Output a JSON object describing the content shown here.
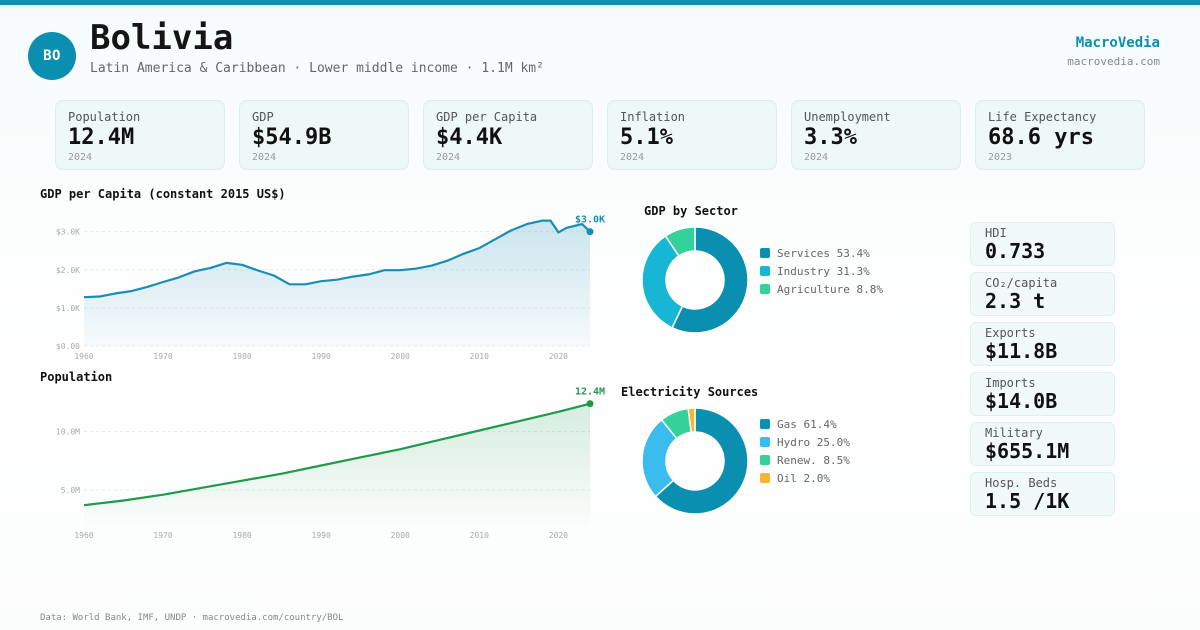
{
  "header": {
    "code": "BO",
    "country": "Bolivia",
    "subtitle": "Latin America & Caribbean · Lower middle income · 1.1M km²",
    "brand": "MacroVedia",
    "brand_url": "macrovedia.com"
  },
  "stats": [
    {
      "label": "Population",
      "value": "12.4M",
      "year": "2024"
    },
    {
      "label": "GDP",
      "value": "$54.9B",
      "year": "2024"
    },
    {
      "label": "GDP per Capita",
      "value": "$4.4K",
      "year": "2024"
    },
    {
      "label": "Inflation",
      "value": "5.1%",
      "year": "2024"
    },
    {
      "label": "Unemployment",
      "value": "3.3%",
      "year": "2024"
    },
    {
      "label": "Life Expectancy",
      "value": "68.6 yrs",
      "year": "2023"
    }
  ],
  "side_stats": [
    {
      "label": "HDI",
      "value": "0.733"
    },
    {
      "label": "CO₂/capita",
      "value": "2.3 t"
    },
    {
      "label": "Exports",
      "value": "$11.8B"
    },
    {
      "label": "Imports",
      "value": "$14.0B"
    },
    {
      "label": "Military",
      "value": "$655.1M"
    },
    {
      "label": "Hosp. Beds",
      "value": "1.5 /1K"
    }
  ],
  "footer": "Data: World Bank, IMF, UNDP · macrovedia.com/country/BOL",
  "colors": {
    "accent": "#0b8fb0",
    "gdp_line": "#1b8db5",
    "pop_line": "#1e9a4a",
    "services": "#0b8fb0",
    "industry": "#17b6d4",
    "agriculture": "#34d19a",
    "gas": "#0b8fb0",
    "hydro": "#3bbcee",
    "renew": "#34d19a",
    "oil": "#f2b630"
  },
  "chart_data": [
    {
      "type": "area",
      "title": "GDP per Capita (constant 2015 US$)",
      "end_label": "$3.0K",
      "x": [
        1960,
        1962,
        1964,
        1966,
        1968,
        1970,
        1972,
        1974,
        1976,
        1978,
        1980,
        1982,
        1984,
        1986,
        1988,
        1990,
        1992,
        1994,
        1996,
        1998,
        2000,
        2002,
        2004,
        2006,
        2008,
        2010,
        2012,
        2014,
        2016,
        2018,
        2019,
        2020,
        2021,
        2022,
        2023,
        2024
      ],
      "y": [
        1280,
        1300,
        1380,
        1440,
        1550,
        1680,
        1800,
        1960,
        2050,
        2180,
        2130,
        1980,
        1850,
        1620,
        1620,
        1700,
        1740,
        1820,
        1880,
        1990,
        1990,
        2030,
        2110,
        2240,
        2420,
        2570,
        2800,
        3030,
        3200,
        3290,
        3290,
        2980,
        3100,
        3150,
        3200,
        3000
      ],
      "yticks": [
        0,
        1000,
        2000,
        3000
      ],
      "ytick_labels": [
        "$0.00",
        "$1.0K",
        "$2.0K",
        "$3.0K"
      ],
      "xticks": [
        1960,
        1970,
        1980,
        1990,
        2000,
        2010,
        2020
      ],
      "ylim": [
        0,
        3700
      ],
      "xlim": [
        1960,
        2024
      ]
    },
    {
      "type": "area",
      "title": "Population",
      "end_label": "12.4M",
      "x": [
        1960,
        1965,
        1970,
        1975,
        1980,
        1985,
        1990,
        1995,
        2000,
        2005,
        2010,
        2015,
        2020,
        2024
      ],
      "y": [
        3.7,
        4.1,
        4.6,
        5.2,
        5.8,
        6.4,
        7.1,
        7.8,
        8.5,
        9.3,
        10.1,
        10.9,
        11.7,
        12.4
      ],
      "yticks": [
        5,
        10
      ],
      "ytick_labels": [
        "5.0M",
        "10.0M"
      ],
      "xticks": [
        1960,
        1970,
        1980,
        1990,
        2000,
        2010,
        2020
      ],
      "ylim": [
        2.0,
        14.0
      ],
      "xlim": [
        1960,
        2024
      ]
    },
    {
      "type": "pie",
      "title": "GDP by Sector",
      "labels": [
        "Services 53.4%",
        "Industry 31.3%",
        "Agriculture 8.8%"
      ],
      "values": [
        53.4,
        31.3,
        8.8
      ]
    },
    {
      "type": "pie",
      "title": "Electricity Sources",
      "labels": [
        "Gas 61.4%",
        "Hydro 25.0%",
        "Renew. 8.5%",
        "Oil 2.0%"
      ],
      "values": [
        61.4,
        25.0,
        8.5,
        2.0
      ]
    }
  ]
}
